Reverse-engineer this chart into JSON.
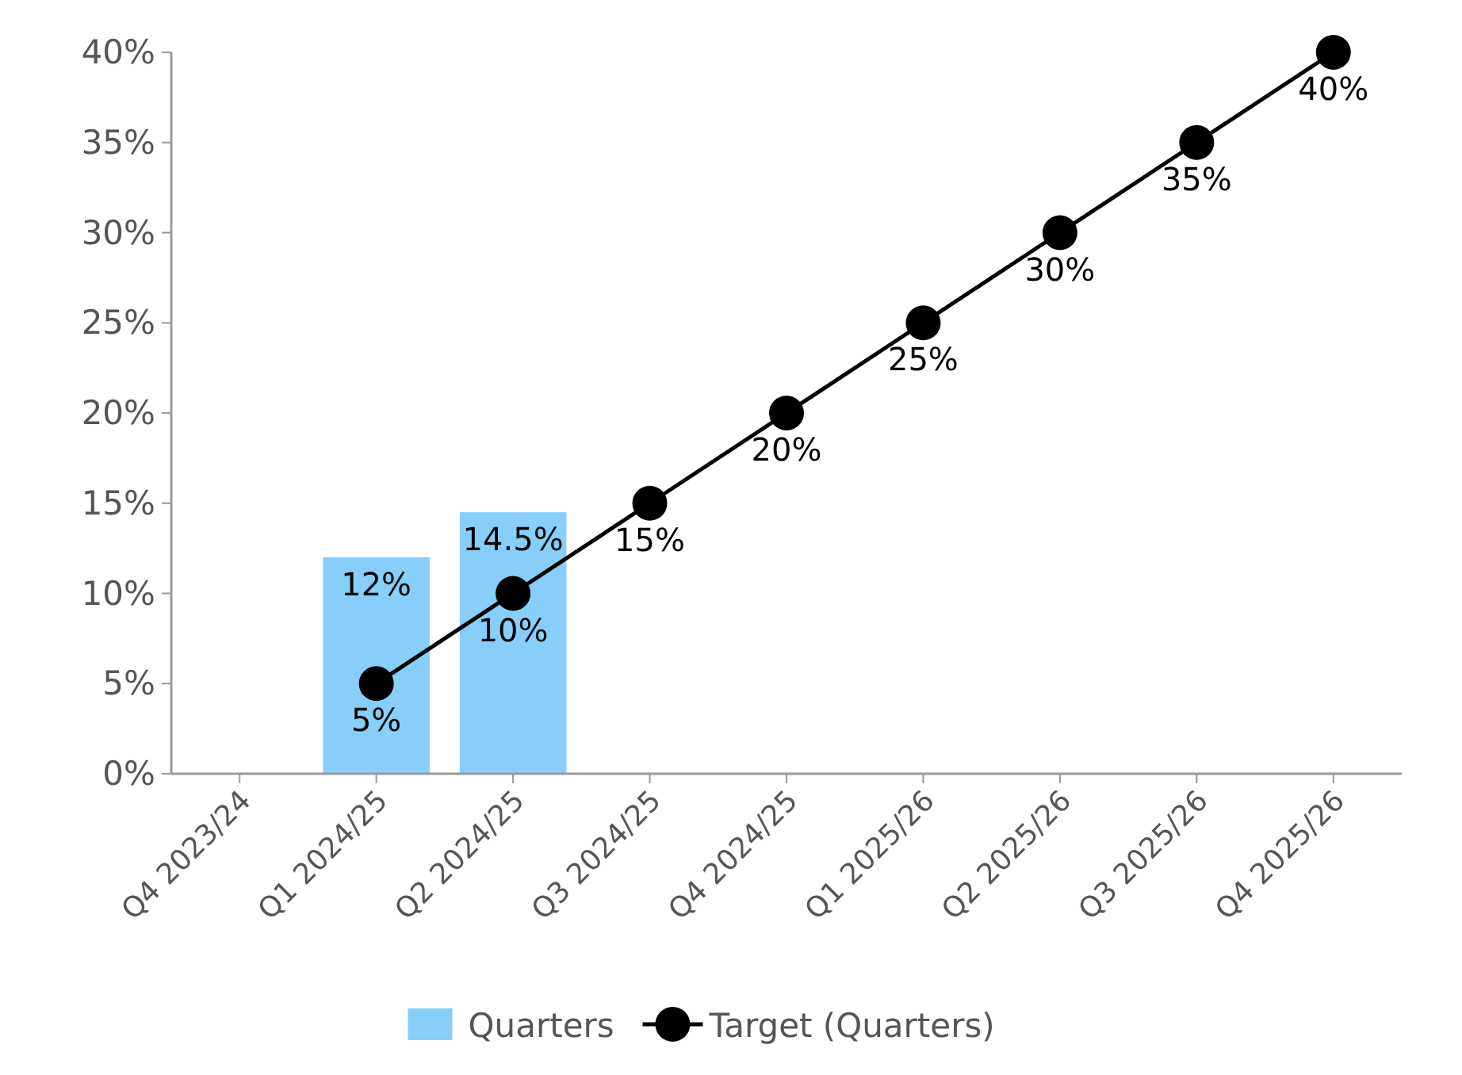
{
  "chart_data": {
    "type": "bar",
    "categories": [
      "Q4 2023/24",
      "Q1 2024/25",
      "Q2 2024/25",
      "Q3 2024/25",
      "Q4 2024/25",
      "Q1 2025/26",
      "Q2 2025/26",
      "Q3 2025/26",
      "Q4 2025/26"
    ],
    "series": [
      {
        "name": "Quarters",
        "color": "#87cefa",
        "values": [
          null,
          12,
          14.5,
          null,
          null,
          null,
          null,
          null,
          null
        ],
        "value_labels": [
          null,
          "12%",
          "14.5%",
          null,
          null,
          null,
          null,
          null,
          null
        ]
      },
      {
        "name": "Target (Quarters)",
        "type": "line",
        "color": "#000000",
        "values": [
          null,
          5,
          10,
          15,
          20,
          25,
          30,
          35,
          40
        ],
        "value_labels": [
          null,
          "5%",
          "10%",
          "15%",
          "20%",
          "25%",
          "30%",
          "35%",
          "40%"
        ]
      }
    ],
    "ylim": [
      0,
      40
    ],
    "yticks": [
      {
        "value": 0,
        "label": "0%"
      },
      {
        "value": 5,
        "label": "5%"
      },
      {
        "value": 10,
        "label": "10%"
      },
      {
        "value": 15,
        "label": "15%"
      },
      {
        "value": 20,
        "label": "20%"
      },
      {
        "value": 25,
        "label": "25%"
      },
      {
        "value": 30,
        "label": "30%"
      },
      {
        "value": 35,
        "label": "35%"
      },
      {
        "value": 40,
        "label": "40%"
      }
    ],
    "marker": "circle",
    "legend": "bottom"
  }
}
